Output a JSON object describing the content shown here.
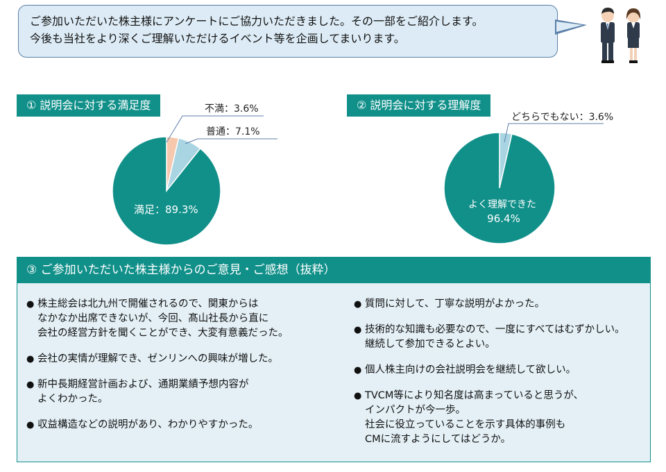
{
  "intro": {
    "line1": "ご参加いただいた株主様にアンケートにご協力いただきました。その一部をご紹介します。",
    "line2": "今後も当社をより深くご理解いただけるイベント等を企画してまいります。"
  },
  "colors": {
    "teal": "#11908a",
    "light_blue": "#a9d5e3",
    "peach": "#f6c8ad",
    "panel_bg": "#e4f0f6"
  },
  "chart1_title": "① 説明会に対する満足度",
  "chart2_title": "② 説明会に対する理解度",
  "chart_data": [
    {
      "type": "pie",
      "title": "① 説明会に対する満足度",
      "slices": [
        {
          "label": "満足",
          "value": 89.3,
          "display": "満足：89.3%",
          "color": "#11908a"
        },
        {
          "label": "不満",
          "value": 3.6,
          "display": "不満：3.6%",
          "color": "#f6c8ad"
        },
        {
          "label": "普通",
          "value": 7.1,
          "display": "普通：7.1%",
          "color": "#a9d5e3"
        }
      ]
    },
    {
      "type": "pie",
      "title": "② 説明会に対する理解度",
      "slices": [
        {
          "label": "よく理解できた",
          "value": 96.4,
          "display_line1": "よく理解できた",
          "display_line2": "96.4%",
          "color": "#11908a"
        },
        {
          "label": "どちらでもない",
          "value": 3.6,
          "display": "どちらでもない：3.6%",
          "color": "#a9d5e3"
        }
      ]
    }
  ],
  "opinions": {
    "title": "③ ご参加いただいた株主様からのご意見・ご感想（抜粋）",
    "left": [
      "株主総会は北九州で開催されるので、関東からは\nなかなか出席できないが、今回、髙山社長から直に\n会社の経営方針を聞くことができ、大変有意義だった。",
      "会社の実情が理解でき、ゼンリンへの興味が増した。",
      "新中長期経営計画および、通期業績予想内容が\nよくわかった。",
      "収益構造などの説明があり、わかりやすかった。"
    ],
    "right": [
      "質問に対して、丁寧な説明がよかった。",
      "技術的な知識も必要なので、一度にすべてはむずかしい。\n継続して参加できるとよい。",
      "個人株主向けの会社説明会を継続して欲しい。",
      "TVCM等により知名度は高まっていると思うが、\nインパクトが今一歩。\n社会に役立っていることを示す具体的事例も\nCMに流すようにしてはどうか。"
    ]
  }
}
